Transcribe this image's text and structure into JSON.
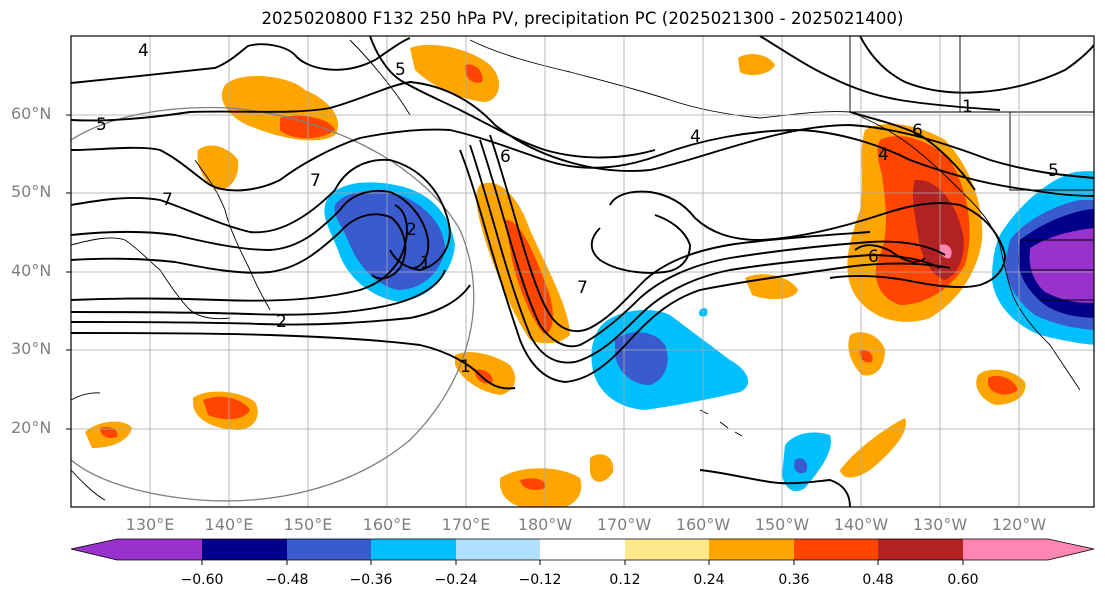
{
  "title": "2025020800 F132 250 hPa PV, precipitation PC (2025021300 - 2025021400)",
  "lat_labels": [
    "60°N",
    "50°N",
    "40°N",
    "30°N",
    "20°N"
  ],
  "lon_labels": [
    "130°E",
    "140°E",
    "150°E",
    "160°E",
    "170°E",
    "180°W",
    "170°W",
    "160°W",
    "150°W",
    "140°W",
    "130°W",
    "120°W"
  ],
  "contour_labels": [
    "4",
    "5",
    "5",
    "6",
    "7",
    "7",
    "2",
    "1",
    "6",
    "4",
    "5",
    "7",
    "2",
    "1",
    "6",
    "4",
    "1"
  ],
  "colorbar": {
    "tick_labels": [
      "−0.60",
      "−0.48",
      "−0.36",
      "−0.24",
      "−0.12",
      "0.12",
      "0.24",
      "0.36",
      "0.48",
      "0.60"
    ],
    "colors": [
      "#9932cc",
      "#00008b",
      "#3a5bcd",
      "#00bfff",
      "#b0e2ff",
      "#ffffff",
      "#ffe98a",
      "#ffa500",
      "#ff4500",
      "#b22222",
      "#ff85b3"
    ]
  },
  "colors": {
    "strong_positive": "#b22222",
    "positive_high": "#ff4500",
    "positive_mid": "#ffa500",
    "positive_low": "#ffe98a",
    "negative_low": "#b0e2ff",
    "negative_mid": "#00bfff",
    "negative_high": "#3a5bcd",
    "negative_strong": "#00008b",
    "negative_extreme": "#9932cc"
  }
}
